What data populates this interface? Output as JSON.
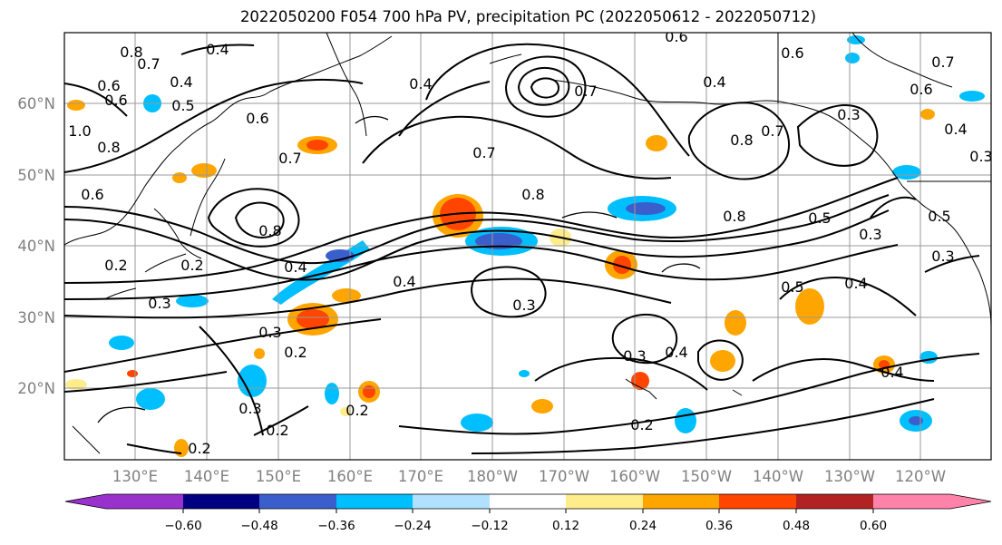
{
  "title": "2022050200 F054 700 hPa PV, precipitation PC (2022050612 - 2022050712)",
  "lat_labels": [
    "60°N",
    "50°N",
    "40°N",
    "30°N",
    "20°N"
  ],
  "lon_labels": [
    "130°E",
    "140°E",
    "150°E",
    "160°E",
    "170°E",
    "180°W",
    "170°W",
    "160°W",
    "150°W",
    "140°W",
    "130°W",
    "120°W"
  ],
  "colorbar": {
    "colors": [
      "#9932cc",
      "#000080",
      "#3a5fcd",
      "#00bfff",
      "#b0e2ff",
      "#ffffff",
      "#ffec8b",
      "#ffa500",
      "#ff4500",
      "#b22222",
      "#ff82ab"
    ],
    "tick_labels": [
      "−0.60",
      "−0.48",
      "−0.36",
      "−0.24",
      "−0.12",
      "0.12",
      "0.24",
      "0.36",
      "0.48",
      "0.60"
    ]
  },
  "contour_labels": [
    "0.8",
    "0.7",
    "0.4",
    "0.6",
    "0.6",
    "0.4",
    "0.6",
    "0.5",
    "0.4",
    "0.6",
    "1.0",
    "0.8",
    "0.7",
    "0.6",
    "0.7",
    "0.8",
    "0.8",
    "0.8",
    "0.7",
    "0.4",
    "0.3",
    "0.2",
    "0.2",
    "0.2",
    "0.4",
    "0.3",
    "0.3",
    "0.3",
    "0.3",
    "0.2",
    "0.3",
    "0.2",
    "0.2",
    "0.2",
    "0.4",
    "0.5",
    "0.8",
    "0.6",
    "0.5",
    "0.3",
    "0.4",
    "0.3",
    "0.5",
    "0.4",
    "0.3",
    "0.6",
    "0.7",
    "0.4",
    "0.7",
    "0.4"
  ]
}
